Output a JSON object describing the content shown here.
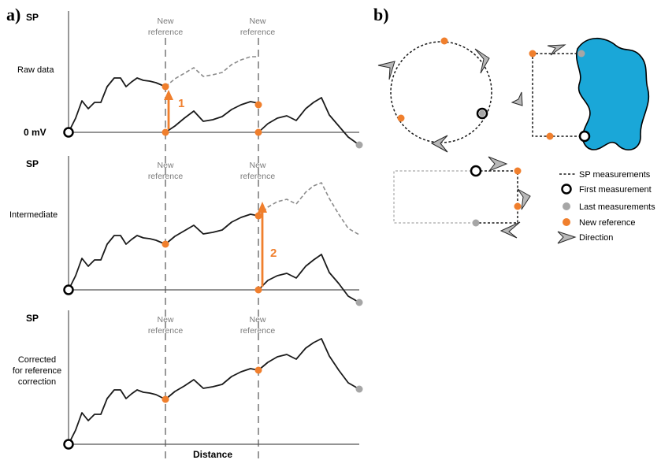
{
  "panel_a": {
    "letter": "a)",
    "y_axis_label": "SP",
    "zero_label": "0 mV",
    "x_axis_label": "Distance",
    "rows": [
      {
        "label_lines": [
          "Raw data"
        ]
      },
      {
        "label_lines": [
          "Intermediate"
        ]
      },
      {
        "label_lines": [
          "Corrected",
          "for reference",
          "correction"
        ]
      }
    ],
    "reference_label_lines": [
      "New",
      "reference"
    ],
    "correction_steps": [
      "1",
      "2"
    ]
  },
  "panel_b": {
    "letter": "b)",
    "legend": [
      {
        "symbol": "dotted-line",
        "label": "SP measurements"
      },
      {
        "symbol": "black-ring",
        "label": "First measurement"
      },
      {
        "symbol": "grey-dot",
        "label": "Last measurements"
      },
      {
        "symbol": "orange-dot",
        "label": "New reference"
      },
      {
        "symbol": "arrowhead",
        "label": "Direction"
      }
    ]
  },
  "colors": {
    "orange": "#f07f2d",
    "grey_dot": "#a6a6a6",
    "dashed_line": "#8c8c8c",
    "water": "#1aa7d8",
    "arrow_fill": "#b8b8b8"
  }
}
